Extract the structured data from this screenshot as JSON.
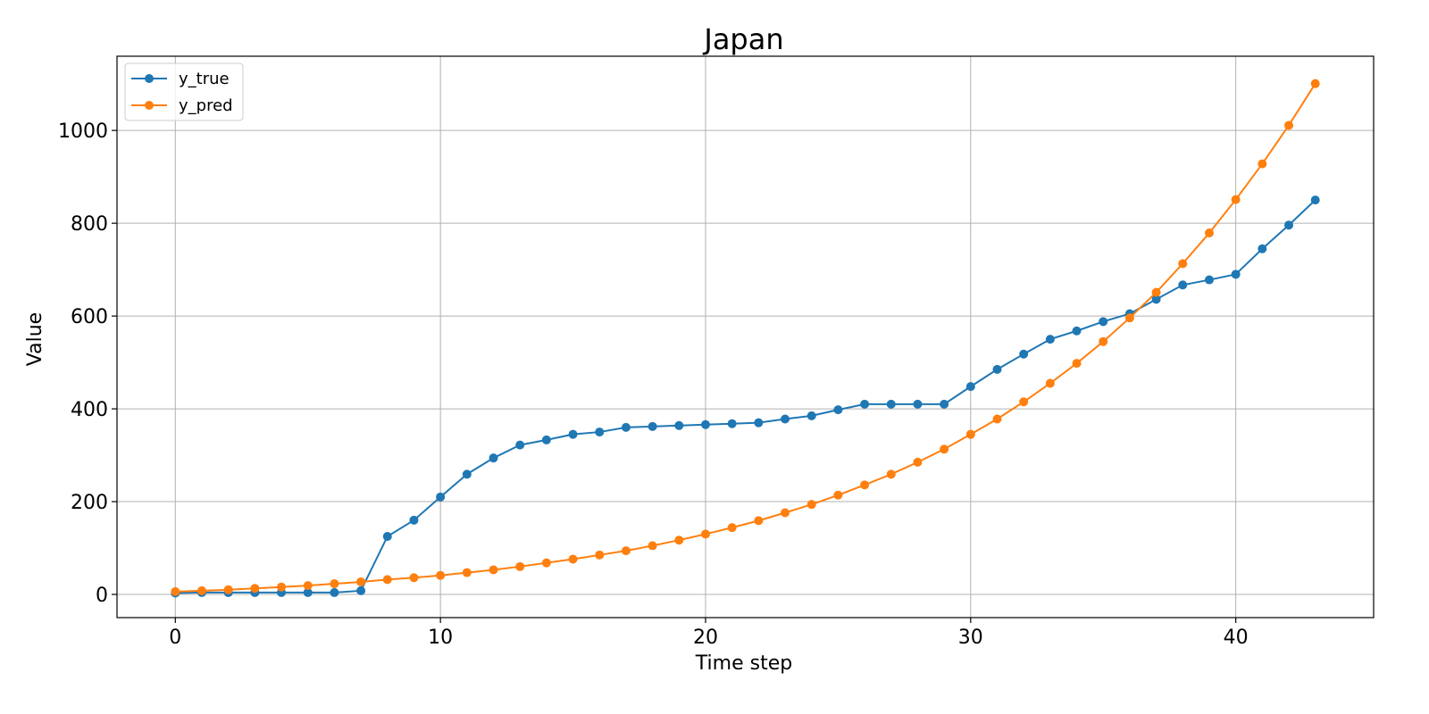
{
  "chart_data": {
    "type": "line",
    "title": "Japan",
    "xlabel": "Time step",
    "ylabel": "Value",
    "xlim": [
      -2.2,
      45.2
    ],
    "ylim": [
      -50,
      1160
    ],
    "xticks": [
      0,
      10,
      20,
      30,
      40
    ],
    "yticks": [
      0,
      200,
      400,
      600,
      800,
      1000
    ],
    "grid": true,
    "legend_position": "top-left",
    "x": [
      0,
      1,
      2,
      3,
      4,
      5,
      6,
      7,
      8,
      9,
      10,
      11,
      12,
      13,
      14,
      15,
      16,
      17,
      18,
      19,
      20,
      21,
      22,
      23,
      24,
      25,
      26,
      27,
      28,
      29,
      30,
      31,
      32,
      33,
      34,
      35,
      36,
      37,
      38,
      39,
      40,
      41,
      42,
      43
    ],
    "series": [
      {
        "name": "y_true",
        "color": "#1f77b4",
        "values": [
          3,
          4,
          4,
          4,
          4,
          4,
          4,
          8,
          125,
          160,
          210,
          259,
          294,
          322,
          333,
          345,
          350,
          360,
          362,
          364,
          366,
          368,
          370,
          378,
          385,
          398,
          410,
          410,
          410,
          410,
          448,
          485,
          518,
          550,
          568,
          588,
          605,
          636,
          667,
          678,
          690,
          745,
          796,
          850
        ]
      },
      {
        "name": "y_pred",
        "color": "#ff7f0e",
        "values": [
          6,
          8,
          10,
          13,
          16,
          19,
          23,
          27,
          32,
          36,
          41,
          47,
          53,
          60,
          68,
          76,
          85,
          94,
          105,
          117,
          130,
          144,
          159,
          176,
          194,
          214,
          236,
          259,
          285,
          313,
          345,
          378,
          415,
          455,
          498,
          545,
          596,
          651,
          713,
          779,
          851,
          928,
          1011,
          1101
        ]
      }
    ]
  }
}
